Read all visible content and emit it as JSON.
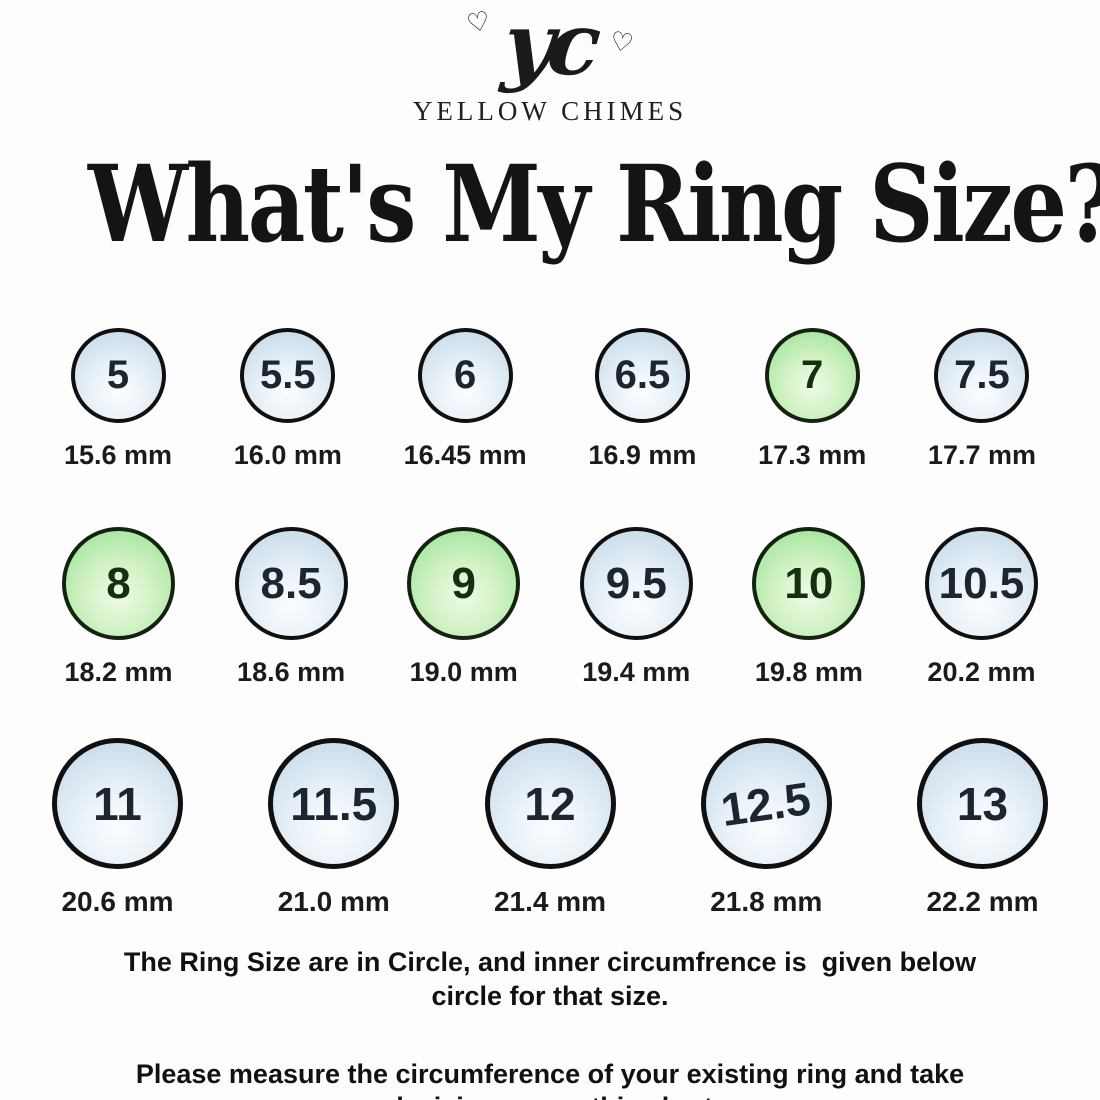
{
  "brand": {
    "logo_text": "yc",
    "heart_icon": "♡",
    "name": "YELLOW CHIMES"
  },
  "title": "What's My Ring Size?",
  "rows": [
    {
      "items": [
        {
          "size": "5",
          "mm": "15.6 mm",
          "color": "blue"
        },
        {
          "size": "5.5",
          "mm": "16.0 mm",
          "color": "blue"
        },
        {
          "size": "6",
          "mm": "16.45 mm",
          "color": "blue"
        },
        {
          "size": "6.5",
          "mm": "16.9 mm",
          "color": "blue"
        },
        {
          "size": "7",
          "mm": "17.3 mm",
          "color": "green"
        },
        {
          "size": "7.5",
          "mm": "17.7 mm",
          "color": "blue"
        }
      ]
    },
    {
      "items": [
        {
          "size": "8",
          "mm": "18.2 mm",
          "color": "green"
        },
        {
          "size": "8.5",
          "mm": "18.6 mm",
          "color": "blue"
        },
        {
          "size": "9",
          "mm": "19.0 mm",
          "color": "green"
        },
        {
          "size": "9.5",
          "mm": "19.4 mm",
          "color": "blue"
        },
        {
          "size": "10",
          "mm": "19.8 mm",
          "color": "green"
        },
        {
          "size": "10.5",
          "mm": "20.2 mm",
          "color": "blue"
        }
      ]
    },
    {
      "items": [
        {
          "size": "11",
          "mm": "20.6 mm",
          "color": "blue"
        },
        {
          "size": "11.5",
          "mm": "21.0 mm",
          "color": "blue"
        },
        {
          "size": "12",
          "mm": "21.4 mm",
          "color": "blue"
        },
        {
          "size": "12.5",
          "mm": "21.8 mm",
          "color": "blue",
          "tilt": -8
        },
        {
          "size": "13",
          "mm": "22.2 mm",
          "color": "blue"
        }
      ]
    }
  ],
  "footer": {
    "line1": "The Ring Size are in Circle, and inner circumfrence is  given below circle for that size.",
    "line2": "Please measure the circumference of your existing ring and take decision as per this chart"
  },
  "colors": {
    "circle_blue": "#c4d7e8",
    "circle_green": "#9ae394",
    "circle_border": "#101010",
    "text": "#141414",
    "background": "#fdfdfd"
  },
  "chart_data": {
    "type": "table",
    "title": "What's My Ring Size?",
    "columns": [
      "ring_size",
      "inner_diameter_mm"
    ],
    "rows": [
      [
        "5",
        "15.6"
      ],
      [
        "5.5",
        "16.0"
      ],
      [
        "6",
        "16.45"
      ],
      [
        "6.5",
        "16.9"
      ],
      [
        "7",
        "17.3"
      ],
      [
        "7.5",
        "17.7"
      ],
      [
        "8",
        "18.2"
      ],
      [
        "8.5",
        "18.6"
      ],
      [
        "9",
        "19.0"
      ],
      [
        "9.5",
        "19.4"
      ],
      [
        "10",
        "19.8"
      ],
      [
        "10.5",
        "20.2"
      ],
      [
        "11",
        "20.6"
      ],
      [
        "11.5",
        "21.0"
      ],
      [
        "12",
        "21.4"
      ],
      [
        "12.5",
        "21.8"
      ],
      [
        "13",
        "22.2"
      ]
    ]
  }
}
